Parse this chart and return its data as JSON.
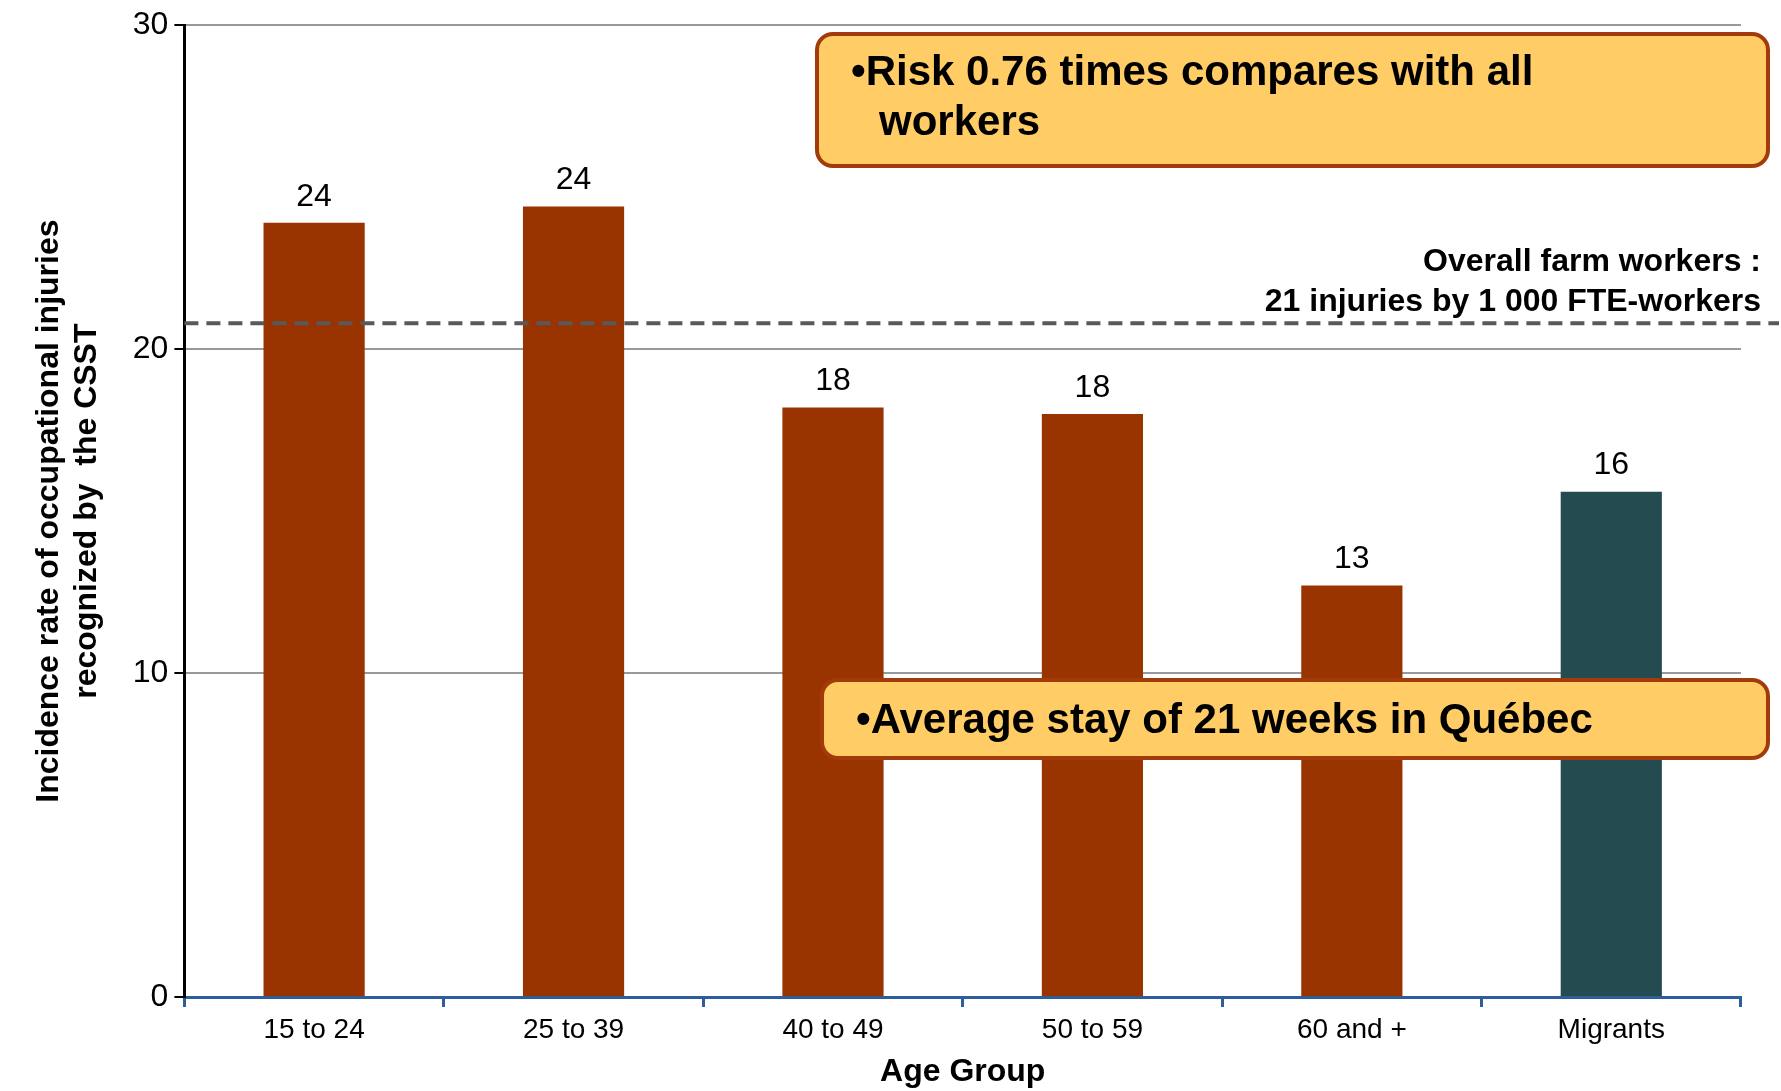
{
  "chart_data": {
    "type": "bar",
    "xlabel": "Age Group",
    "ylabel": "Incidence rate of occupational injuries\nrecognized by  the CSST",
    "categories": [
      "15 to 24",
      "25 to 39",
      "40 to 49",
      "50 to 59",
      "60 and +",
      "Migrants"
    ],
    "values": [
      23.9,
      24.4,
      18.2,
      18.0,
      12.7,
      15.6
    ],
    "value_labels": [
      "24",
      "24",
      "18",
      "18",
      "13",
      "16"
    ],
    "colors": [
      "#993300",
      "#993300",
      "#993300",
      "#993300",
      "#993300",
      "#244b4f"
    ],
    "ylim": [
      0,
      30
    ],
    "yticks": [
      0,
      10,
      20,
      30
    ],
    "grid": "y",
    "ref_lines": [
      {
        "axis": "y",
        "value": 20.8,
        "label": "Overall farm workers :\n21 injuries by 1 000 FTE-workers",
        "color": "#595959",
        "line_style": "dashed"
      }
    ],
    "annotations": [
      "•Risk 0.76 times compares with all workers",
      "•Average stay of 21 weeks in Québec"
    ]
  }
}
